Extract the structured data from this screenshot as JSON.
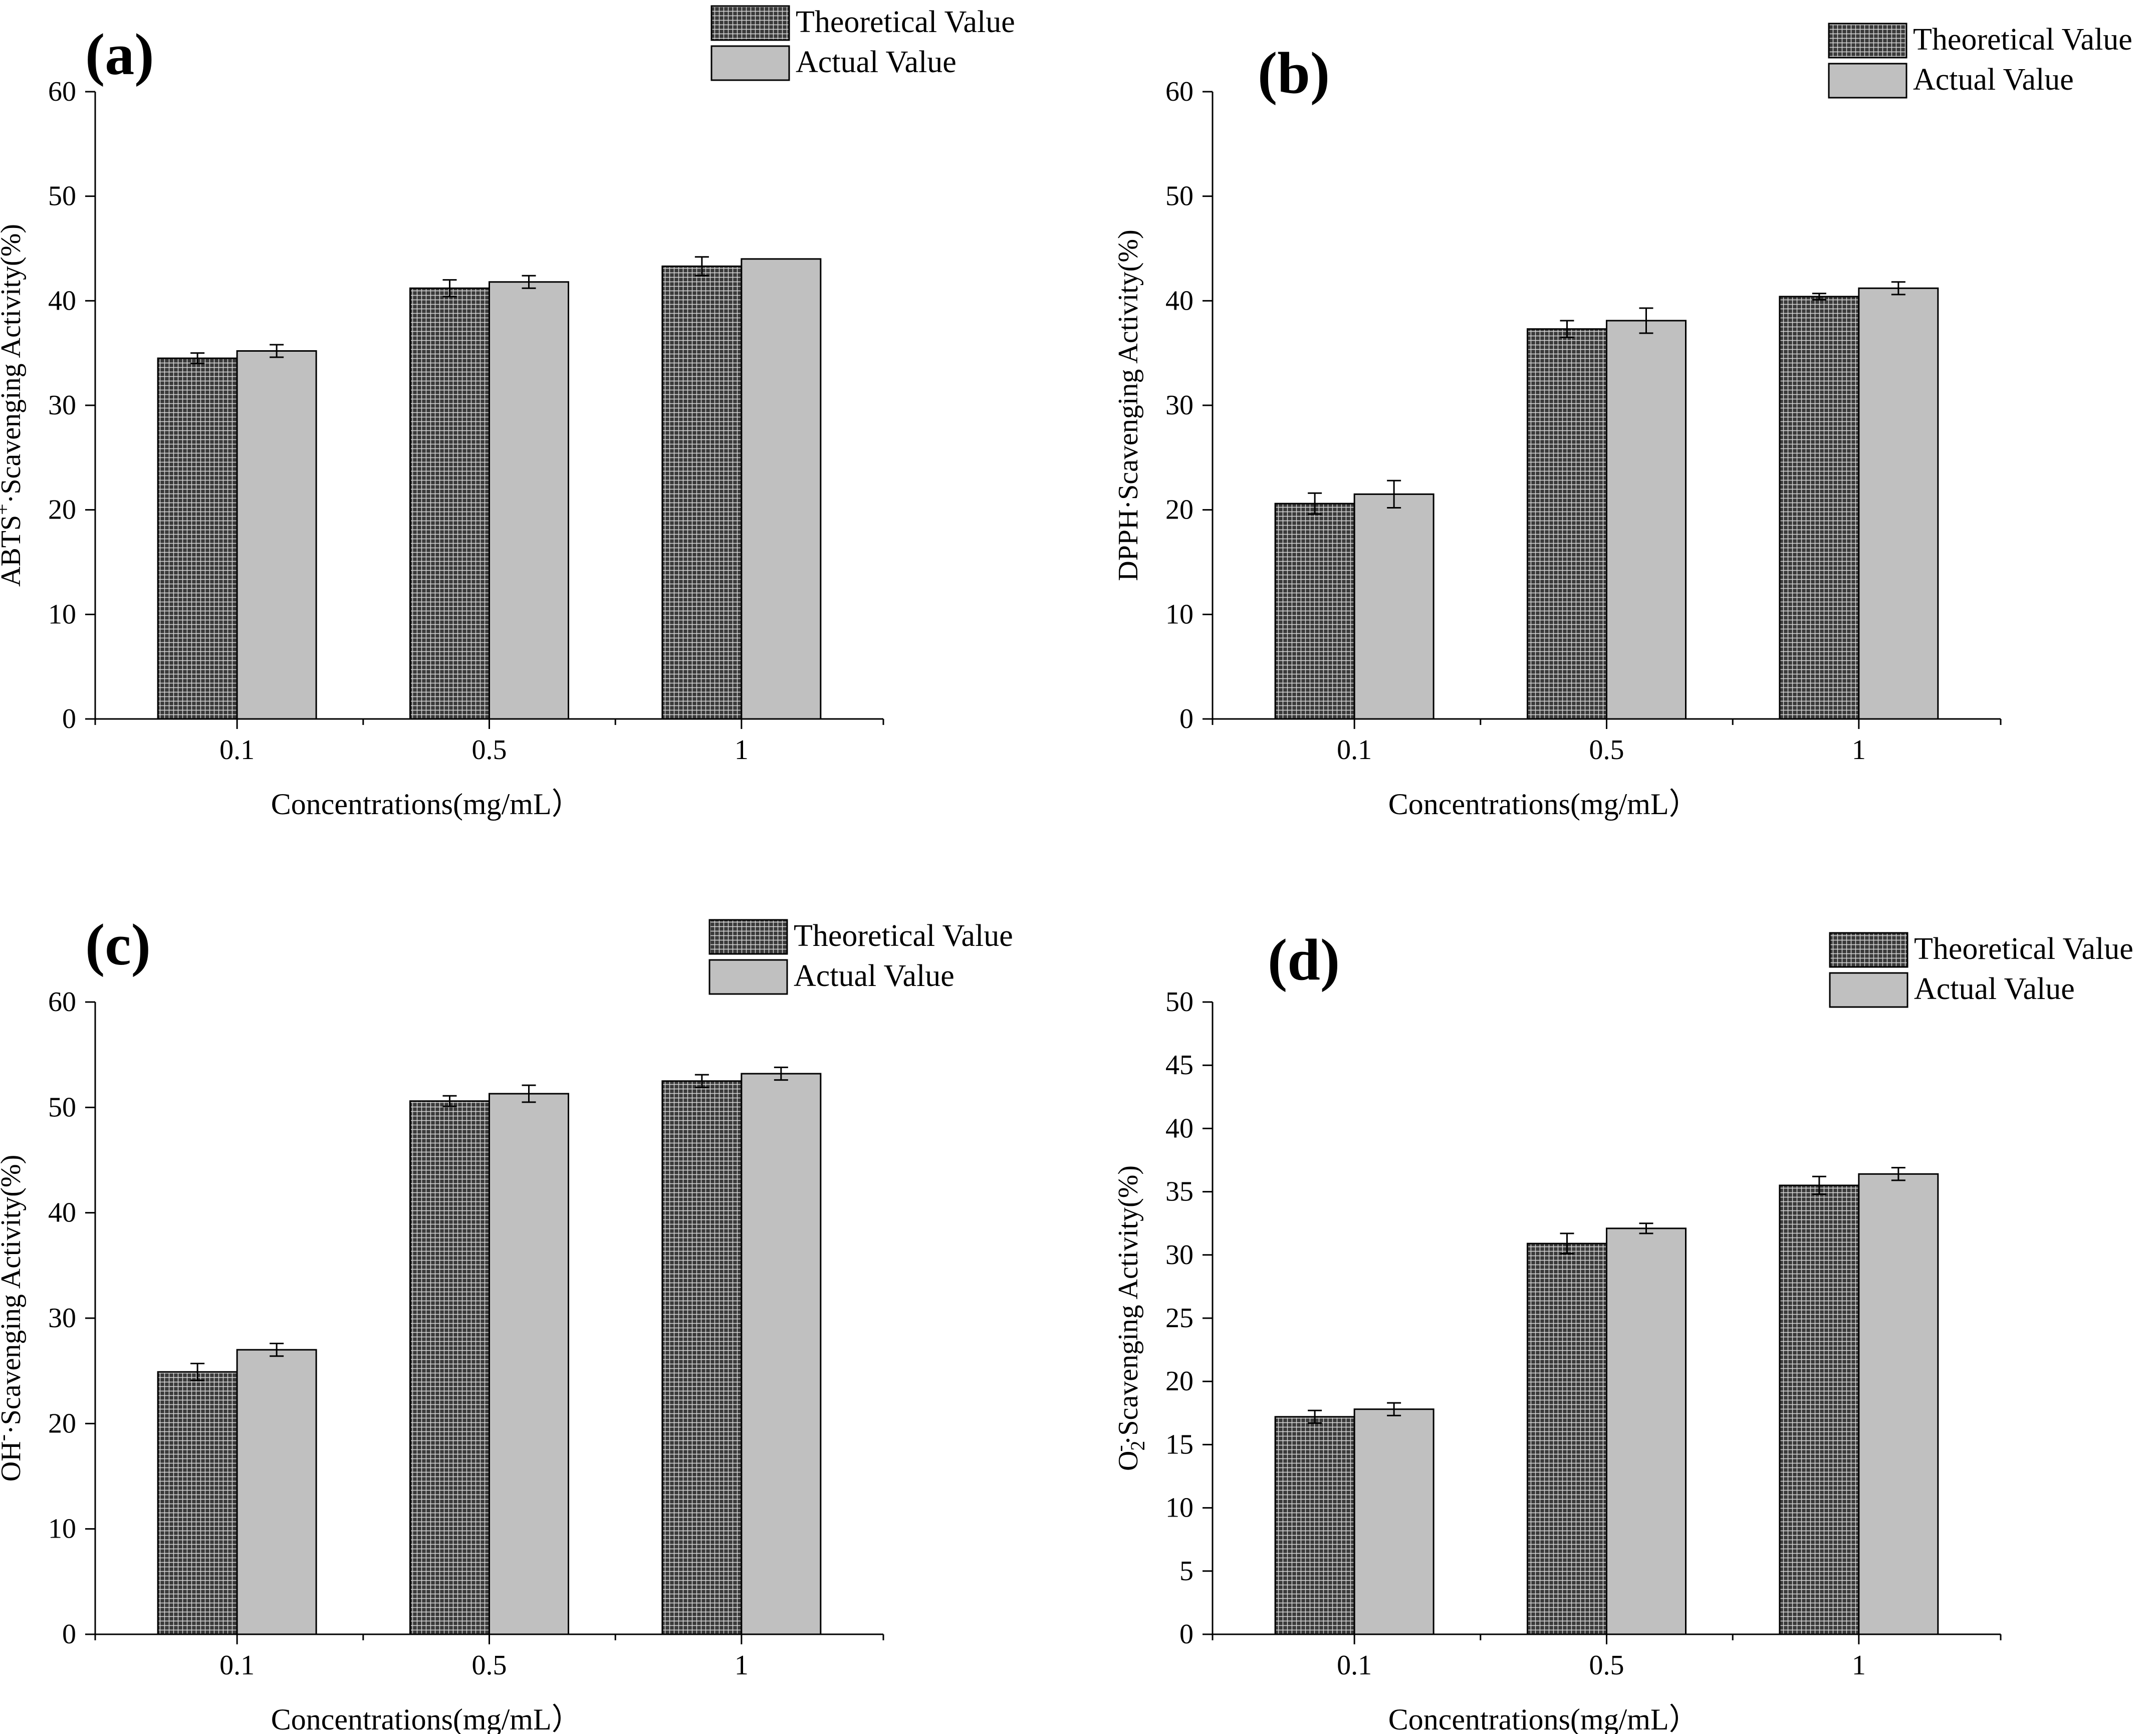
{
  "colors": {
    "theoretical_fill": "#3a3a3a",
    "theoretical_grid": "#d9d9d9",
    "actual_fill": "#c0c0c0",
    "axis": "#000000"
  },
  "chart_data": [
    {
      "type": "bar",
      "panel_label": "(a)",
      "categories": [
        "0.1",
        "0.5",
        "1"
      ],
      "series": [
        {
          "name": "Theoretical Value",
          "values": [
            34.5,
            41.2,
            43.3
          ],
          "errors": [
            0.5,
            0.8,
            0.9
          ]
        },
        {
          "name": "Actual Value",
          "values": [
            35.2,
            41.8,
            44.0
          ],
          "errors": [
            0.6,
            0.6,
            0.0
          ]
        }
      ],
      "xlabel": "Concentrations(mg/mL）",
      "ylabel_main": "ABTS",
      "ylabel_sup": "+",
      "ylabel_rest": "·Scavenging Activity(%)",
      "ylim": [
        0,
        60
      ],
      "yticks": [
        0,
        10,
        20,
        30,
        40,
        50,
        60
      ],
      "legend_position": "top-right"
    },
    {
      "type": "bar",
      "panel_label": "(b)",
      "categories": [
        "0.1",
        "0.5",
        "1"
      ],
      "series": [
        {
          "name": "Theoretical Value",
          "values": [
            20.6,
            37.3,
            40.4
          ],
          "errors": [
            1.0,
            0.8,
            0.3
          ]
        },
        {
          "name": "Actual Value",
          "values": [
            21.5,
            38.1,
            41.2
          ],
          "errors": [
            1.3,
            1.2,
            0.6
          ]
        }
      ],
      "xlabel": "Concentrations(mg/mL）",
      "ylabel_main": "DPPH·Scavenging Activity(%)",
      "ylim": [
        0,
        60
      ],
      "yticks": [
        0,
        10,
        20,
        30,
        40,
        50,
        60
      ],
      "legend_position": "top-right"
    },
    {
      "type": "bar",
      "panel_label": "(c)",
      "categories": [
        "0.1",
        "0.5",
        "1"
      ],
      "series": [
        {
          "name": "Theoretical Value",
          "values": [
            24.9,
            50.6,
            52.5
          ],
          "errors": [
            0.8,
            0.5,
            0.6
          ]
        },
        {
          "name": "Actual Value",
          "values": [
            27.0,
            51.3,
            53.2
          ],
          "errors": [
            0.6,
            0.8,
            0.6
          ]
        }
      ],
      "xlabel": "Concentrations(mg/mL）",
      "ylabel_main": "OH",
      "ylabel_sup": "-",
      "ylabel_rest": "·Scavenging Activity(%)",
      "ylim": [
        0,
        60
      ],
      "yticks": [
        0,
        10,
        20,
        30,
        40,
        50,
        60
      ],
      "legend_position": "top-right"
    },
    {
      "type": "bar",
      "panel_label": "(d)",
      "categories": [
        "0.1",
        "0.5",
        "1"
      ],
      "series": [
        {
          "name": "Theoretical Value",
          "values": [
            17.2,
            30.9,
            35.5
          ],
          "errors": [
            0.5,
            0.8,
            0.7
          ]
        },
        {
          "name": "Actual Value",
          "values": [
            17.8,
            32.1,
            36.4
          ],
          "errors": [
            0.5,
            0.4,
            0.5
          ]
        }
      ],
      "xlabel": "Concentrations(mg/mL）",
      "ylabel_main": "O",
      "ylabel_sub": "2",
      "ylabel_sup": "-",
      "ylabel_rest": "·Scavenging Activity(%)",
      "ylim": [
        0,
        50
      ],
      "yticks": [
        0,
        5,
        10,
        15,
        20,
        25,
        30,
        35,
        40,
        45,
        50
      ],
      "legend_position": "top-right"
    }
  ]
}
